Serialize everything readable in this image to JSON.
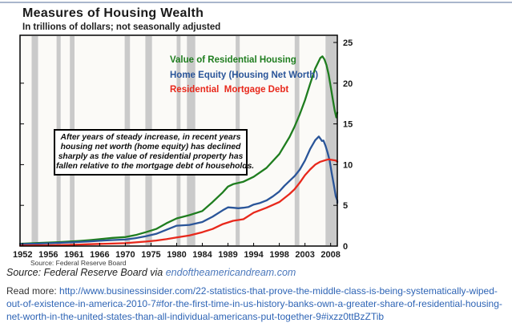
{
  "page": {
    "top_rule_color": "#a9b6cc"
  },
  "chart_data": {
    "type": "line",
    "title": "Measures of Housing Wealth",
    "subtitle": "In trillions of dollars; not seasonally adjusted",
    "unit": "trillions of US dollars",
    "ylim": [
      0,
      25
    ],
    "yticks": [
      0,
      5,
      10,
      15,
      20,
      25
    ],
    "xtick_labels": [
      1952,
      1956,
      1961,
      1966,
      1970,
      1975,
      1980,
      1984,
      1989,
      1994,
      1998,
      2003,
      2008
    ],
    "grid": false,
    "legend_position": "inside-top-right",
    "plot_bg": "#fbfaf7",
    "border_color": "#000000",
    "recession_color": "#cacaca",
    "recessions": [
      [
        1953.4,
        1954.4
      ],
      [
        1957.6,
        1958.4
      ],
      [
        1960.2,
        1961.1
      ],
      [
        1969.9,
        1970.9
      ],
      [
        1973.9,
        1975.2
      ],
      [
        1980.0,
        1980.6
      ],
      [
        1981.6,
        1982.9
      ],
      [
        1990.5,
        1991.3
      ],
      [
        2001.0,
        2001.9
      ],
      [
        2007.0,
        2009.6
      ]
    ],
    "series": [
      {
        "name": "Value of Residential Housing",
        "color": "#1f7d1f",
        "points": [
          [
            1951.6,
            0.29
          ],
          [
            1954,
            0.36
          ],
          [
            1956,
            0.42
          ],
          [
            1958,
            0.48
          ],
          [
            1960,
            0.55
          ],
          [
            1962,
            0.63
          ],
          [
            1964,
            0.73
          ],
          [
            1966,
            0.85
          ],
          [
            1968,
            1.0
          ],
          [
            1970,
            1.1
          ],
          [
            1972,
            1.35
          ],
          [
            1974,
            1.7
          ],
          [
            1976,
            2.1
          ],
          [
            1978,
            2.8
          ],
          [
            1980,
            3.4
          ],
          [
            1982,
            3.8
          ],
          [
            1984,
            4.3
          ],
          [
            1986,
            5.4
          ],
          [
            1988,
            6.6
          ],
          [
            1989,
            7.3
          ],
          [
            1990,
            7.6
          ],
          [
            1992,
            7.9
          ],
          [
            1994,
            8.5
          ],
          [
            1996,
            9.6
          ],
          [
            1998,
            11.3
          ],
          [
            2000,
            13.4
          ],
          [
            2001,
            14.7
          ],
          [
            2002,
            16.2
          ],
          [
            2003,
            17.9
          ],
          [
            2004,
            19.9
          ],
          [
            2005,
            21.8
          ],
          [
            2006,
            23.1
          ],
          [
            2006.4,
            23.3
          ],
          [
            2006.8,
            22.9
          ],
          [
            2007.2,
            22.2
          ],
          [
            2007.6,
            21.1
          ],
          [
            2008,
            19.6
          ],
          [
            2008.4,
            18.1
          ],
          [
            2008.8,
            16.6
          ],
          [
            2009.1,
            15.8
          ],
          [
            2009.4,
            16.4
          ]
        ]
      },
      {
        "name": "Home Equity (Housing Net Worth)",
        "color": "#2a5599",
        "points": [
          [
            1951.6,
            0.24
          ],
          [
            1954,
            0.3
          ],
          [
            1956,
            0.34
          ],
          [
            1958,
            0.39
          ],
          [
            1960,
            0.44
          ],
          [
            1962,
            0.5
          ],
          [
            1964,
            0.57
          ],
          [
            1966,
            0.65
          ],
          [
            1968,
            0.74
          ],
          [
            1970,
            0.8
          ],
          [
            1972,
            0.97
          ],
          [
            1974,
            1.2
          ],
          [
            1976,
            1.5
          ],
          [
            1978,
            2.0
          ],
          [
            1980,
            2.5
          ],
          [
            1982,
            2.6
          ],
          [
            1984,
            2.95
          ],
          [
            1986,
            3.6
          ],
          [
            1988,
            4.4
          ],
          [
            1989,
            4.75
          ],
          [
            1990,
            4.7
          ],
          [
            1991,
            4.65
          ],
          [
            1992,
            4.7
          ],
          [
            1993,
            4.8
          ],
          [
            1994,
            5.1
          ],
          [
            1995,
            5.3
          ],
          [
            1996,
            5.6
          ],
          [
            1997,
            6.1
          ],
          [
            1998,
            6.7
          ],
          [
            1999,
            7.4
          ],
          [
            2000,
            8.0
          ],
          [
            2001,
            8.6
          ],
          [
            2002,
            9.4
          ],
          [
            2003,
            10.5
          ],
          [
            2004,
            11.9
          ],
          [
            2005,
            13.0
          ],
          [
            2005.7,
            13.45
          ],
          [
            2006,
            13.2
          ],
          [
            2006.3,
            12.9
          ],
          [
            2006.6,
            12.95
          ],
          [
            2007,
            12.3
          ],
          [
            2007.4,
            11.5
          ],
          [
            2007.8,
            10.5
          ],
          [
            2008.2,
            9.0
          ],
          [
            2008.6,
            7.6
          ],
          [
            2009,
            6.1
          ],
          [
            2009.3,
            5.6
          ],
          [
            2009.45,
            5.3
          ]
        ]
      },
      {
        "name": "Residential  Mortgage Debt",
        "color": "#e8281b",
        "points": [
          [
            1951.6,
            0.06
          ],
          [
            1954,
            0.08
          ],
          [
            1956,
            0.1
          ],
          [
            1958,
            0.12
          ],
          [
            1960,
            0.15
          ],
          [
            1962,
            0.19
          ],
          [
            1964,
            0.23
          ],
          [
            1966,
            0.27
          ],
          [
            1968,
            0.31
          ],
          [
            1970,
            0.35
          ],
          [
            1972,
            0.45
          ],
          [
            1974,
            0.55
          ],
          [
            1976,
            0.68
          ],
          [
            1978,
            0.85
          ],
          [
            1980,
            1.05
          ],
          [
            1982,
            1.3
          ],
          [
            1984,
            1.7
          ],
          [
            1986,
            2.1
          ],
          [
            1988,
            2.7
          ],
          [
            1990,
            3.1
          ],
          [
            1992,
            3.3
          ],
          [
            1994,
            4.1
          ],
          [
            1996,
            4.7
          ],
          [
            1998,
            5.4
          ],
          [
            2000,
            6.4
          ],
          [
            2001,
            7.0
          ],
          [
            2002,
            7.8
          ],
          [
            2003,
            8.7
          ],
          [
            2004,
            9.4
          ],
          [
            2005,
            10.0
          ],
          [
            2006,
            10.35
          ],
          [
            2007,
            10.55
          ],
          [
            2007.6,
            10.65
          ],
          [
            2008,
            10.6
          ],
          [
            2008.5,
            10.55
          ],
          [
            2009,
            10.5
          ],
          [
            2009.45,
            10.35
          ]
        ]
      }
    ],
    "source_note": "Source: Federal Reserve Board"
  },
  "annotation": {
    "lines": [
      "After years of steady increase, in recent years",
      "housing net worth (home equity) has declined",
      "sharply as the value of residential property has",
      "fallen relative to the mortgage debt of households."
    ]
  },
  "attribution": {
    "prefix": "Source: Federal Reserve Board via ",
    "link_text": "endoftheamericandream.com",
    "link_color": "#4a77bb"
  },
  "read_more": {
    "label": "Read more: ",
    "url": "http://www.businessinsider.com/22-statistics-that-prove-the-middle-class-is-being-systematically-wiped-out-of-existence-in-america-2010-7#for-the-first-time-in-us-history-banks-own-a-greater-share-of-residential-housing-net-worth-in-the-united-states-than-all-individual-americans-put-together-9#ixzz0ttBzZTib",
    "link_color": "#2e64b5"
  }
}
